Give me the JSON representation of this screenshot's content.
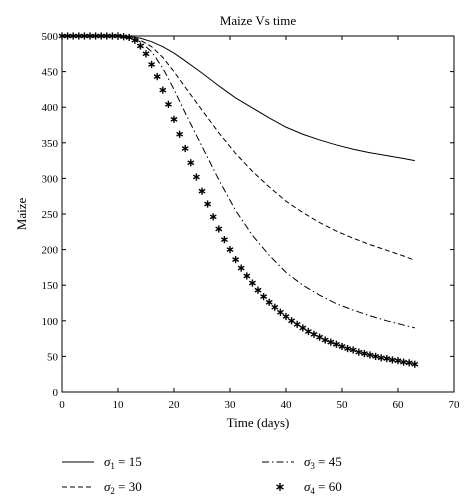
{
  "chart_data": {
    "type": "line",
    "title": "Maize Vs time",
    "xlabel": "Time (days)",
    "ylabel": "Maize",
    "xlim": [
      0,
      70
    ],
    "ylim": [
      0,
      500
    ],
    "xticks": [
      0,
      10,
      20,
      30,
      40,
      50,
      60,
      70
    ],
    "yticks": [
      0,
      50,
      100,
      150,
      200,
      250,
      300,
      350,
      400,
      450,
      500
    ],
    "grid": false,
    "legend_placement": "below",
    "series": [
      {
        "name_base": "σ",
        "name_sub": "1",
        "name_rest": " = 15",
        "style": "solid",
        "x": [
          0,
          5,
          10,
          12,
          14,
          16,
          18,
          20,
          22,
          25,
          28,
          31,
          34,
          37,
          40,
          43,
          46,
          49,
          52,
          55,
          58,
          61,
          63
        ],
        "y": [
          500,
          500,
          500,
          499,
          497,
          492,
          485,
          476,
          465,
          448,
          430,
          413,
          399,
          385,
          372,
          362,
          354,
          347,
          341,
          336,
          332,
          328,
          325
        ]
      },
      {
        "name_base": "σ",
        "name_sub": "2",
        "name_rest": " = 30",
        "style": "dashed",
        "x": [
          0,
          5,
          10,
          12,
          14,
          16,
          18,
          20,
          22,
          25,
          28,
          31,
          34,
          37,
          40,
          43,
          46,
          49,
          52,
          55,
          58,
          61,
          63
        ],
        "y": [
          500,
          500,
          500,
          498,
          494,
          485,
          470,
          450,
          428,
          396,
          364,
          335,
          310,
          288,
          268,
          252,
          238,
          226,
          216,
          207,
          199,
          191,
          185
        ]
      },
      {
        "name_base": "σ",
        "name_sub": "3",
        "name_rest": " = 45",
        "style": "dashdot",
        "x": [
          0,
          5,
          10,
          12,
          14,
          16,
          18,
          20,
          22,
          25,
          28,
          31,
          34,
          37,
          40,
          43,
          46,
          49,
          52,
          55,
          58,
          61,
          63
        ],
        "y": [
          500,
          500,
          500,
          498,
          492,
          478,
          455,
          425,
          392,
          345,
          298,
          255,
          220,
          192,
          168,
          150,
          136,
          124,
          115,
          107,
          100,
          94,
          90
        ]
      },
      {
        "name_base": "σ",
        "name_sub": "4",
        "name_rest": " = 60",
        "style": "marker-star",
        "x": [
          0,
          1,
          2,
          3,
          4,
          5,
          6,
          7,
          8,
          9,
          10,
          11,
          12,
          13,
          14,
          15,
          16,
          17,
          18,
          19,
          20,
          21,
          22,
          23,
          24,
          25,
          26,
          27,
          28,
          29,
          30,
          31,
          32,
          33,
          34,
          35,
          36,
          37,
          38,
          39,
          40,
          41,
          42,
          43,
          44,
          45,
          46,
          47,
          48,
          49,
          50,
          51,
          52,
          53,
          54,
          55,
          56,
          57,
          58,
          59,
          60,
          61,
          62,
          63
        ],
        "y": [
          500,
          500,
          500,
          500,
          500,
          500,
          500,
          500,
          500,
          500,
          500,
          499,
          498,
          494,
          486,
          475,
          460,
          443,
          424,
          404,
          383,
          362,
          342,
          322,
          302,
          282,
          264,
          246,
          229,
          214,
          200,
          186,
          174,
          163,
          153,
          143,
          134,
          126,
          119,
          112,
          106,
          100,
          95,
          90,
          85,
          81,
          77,
          73,
          70,
          67,
          64,
          61,
          59,
          56,
          54,
          52,
          50,
          48,
          47,
          45,
          44,
          42,
          41,
          39
        ]
      }
    ]
  }
}
